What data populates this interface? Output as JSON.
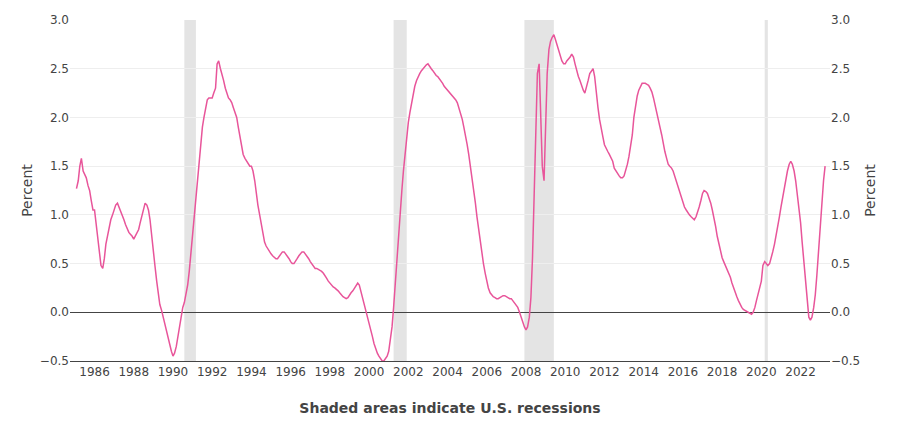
{
  "chart_data": {
    "type": "line",
    "xlabel": "Shaded areas indicate U.S. recessions",
    "ylabel": "Percent",
    "y2label": "Percent",
    "color": "#e8559a",
    "grid": "y",
    "xlim": [
      1984.75,
      2023.5
    ],
    "xticks": [
      1986,
      1988,
      1990,
      1992,
      1994,
      1996,
      1998,
      2000,
      2002,
      2004,
      2006,
      2008,
      2010,
      2012,
      2014,
      2016,
      2018,
      2020,
      2022
    ],
    "ylim": [
      -0.5,
      3.0
    ],
    "yticks": [
      {
        "value": -0.5,
        "label": "−0.5"
      },
      {
        "value": 0.0,
        "label": "0.0"
      },
      0.5,
      {
        "value": 1.0,
        "label": "1.0"
      },
      1.5,
      {
        "value": 2.0,
        "label": "2.0"
      },
      2.5,
      {
        "value": 3.0,
        "label": "3.0"
      }
    ],
    "y2lim": [
      -0.5,
      3.0
    ],
    "y2ticks": [
      {
        "value": -0.5,
        "label": "−0.5"
      },
      {
        "value": 0.0,
        "label": "0.0"
      },
      0.5,
      {
        "value": 1.0,
        "label": "1.0"
      },
      1.5,
      {
        "value": 2.0,
        "label": "2.0"
      },
      2.5,
      {
        "value": 3.0,
        "label": "3.0"
      }
    ],
    "recessions": [
      [
        1990.58,
        1991.17
      ],
      [
        2001.25,
        2001.92
      ],
      [
        2007.92,
        2009.42
      ],
      [
        2020.17,
        2020.33
      ]
    ],
    "x": [
      1985.08,
      1985.17,
      1985.25,
      1985.33,
      1985.42,
      1985.5,
      1985.58,
      1985.67,
      1985.75,
      1985.83,
      1985.92,
      1986.0,
      1986.08,
      1986.17,
      1986.25,
      1986.33,
      1986.42,
      1986.5,
      1986.58,
      1986.67,
      1986.75,
      1986.83,
      1986.92,
      1987.0,
      1987.08,
      1987.17,
      1987.25,
      1987.33,
      1987.42,
      1987.5,
      1987.58,
      1987.67,
      1987.75,
      1987.83,
      1987.92,
      1988.0,
      1988.08,
      1988.17,
      1988.25,
      1988.33,
      1988.42,
      1988.5,
      1988.58,
      1988.67,
      1988.75,
      1988.83,
      1988.92,
      1989.0,
      1989.08,
      1989.17,
      1989.25,
      1989.33,
      1989.42,
      1989.5,
      1989.58,
      1989.67,
      1989.75,
      1989.83,
      1989.92,
      1990.0,
      1990.08,
      1990.17,
      1990.25,
      1990.33,
      1990.42,
      1990.5,
      1990.58,
      1990.67,
      1990.75,
      1990.83,
      1990.92,
      1991.0,
      1991.08,
      1991.17,
      1991.25,
      1991.33,
      1991.42,
      1991.5,
      1991.58,
      1991.67,
      1991.75,
      1991.83,
      1991.92,
      1992.0,
      1992.08,
      1992.17,
      1992.25,
      1992.33,
      1992.42,
      1992.5,
      1992.58,
      1992.67,
      1992.75,
      1992.83,
      1992.92,
      1993.0,
      1993.08,
      1993.17,
      1993.25,
      1993.33,
      1993.42,
      1993.5,
      1993.58,
      1993.67,
      1993.75,
      1993.83,
      1993.92,
      1994.0,
      1994.08,
      1994.17,
      1994.25,
      1994.33,
      1994.42,
      1994.5,
      1994.58,
      1994.67,
      1994.75,
      1994.83,
      1994.92,
      1995.0,
      1995.08,
      1995.17,
      1995.25,
      1995.33,
      1995.42,
      1995.5,
      1995.58,
      1995.67,
      1995.75,
      1995.83,
      1995.92,
      1996.0,
      1996.08,
      1996.17,
      1996.25,
      1996.33,
      1996.42,
      1996.5,
      1996.58,
      1996.67,
      1996.75,
      1996.83,
      1996.92,
      1997.0,
      1997.08,
      1997.17,
      1997.25,
      1997.33,
      1997.42,
      1997.5,
      1997.58,
      1997.67,
      1997.75,
      1997.83,
      1997.92,
      1998.0,
      1998.08,
      1998.17,
      1998.25,
      1998.33,
      1998.42,
      1998.5,
      1998.58,
      1998.67,
      1998.75,
      1998.83,
      1998.92,
      1999.0,
      1999.08,
      1999.17,
      1999.25,
      1999.33,
      1999.42,
      1999.5,
      1999.58,
      1999.67,
      1999.75,
      1999.83,
      1999.92,
      2000.0,
      2000.08,
      2000.17,
      2000.25,
      2000.33,
      2000.42,
      2000.5,
      2000.58,
      2000.67,
      2000.75,
      2000.83,
      2000.92,
      2001.0,
      2001.08,
      2001.17,
      2001.25,
      2001.33,
      2001.42,
      2001.5,
      2001.58,
      2001.67,
      2001.75,
      2001.83,
      2001.92,
      2002.0,
      2002.08,
      2002.17,
      2002.25,
      2002.33,
      2002.42,
      2002.5,
      2002.58,
      2002.67,
      2002.75,
      2002.83,
      2002.92,
      2003.0,
      2003.08,
      2003.17,
      2003.25,
      2003.33,
      2003.42,
      2003.5,
      2003.58,
      2003.67,
      2003.75,
      2003.83,
      2003.92,
      2004.0,
      2004.08,
      2004.17,
      2004.25,
      2004.33,
      2004.42,
      2004.5,
      2004.58,
      2004.67,
      2004.75,
      2004.83,
      2004.92,
      2005.0,
      2005.08,
      2005.17,
      2005.25,
      2005.33,
      2005.42,
      2005.5,
      2005.58,
      2005.67,
      2005.75,
      2005.83,
      2005.92,
      2006.0,
      2006.08,
      2006.17,
      2006.25,
      2006.33,
      2006.42,
      2006.5,
      2006.58,
      2006.67,
      2006.75,
      2006.83,
      2006.92,
      2007.0,
      2007.08,
      2007.17,
      2007.25,
      2007.33,
      2007.42,
      2007.5,
      2007.58,
      2007.67,
      2007.75,
      2007.83,
      2007.92,
      2008.0,
      2008.08,
      2008.17,
      2008.25,
      2008.33,
      2008.42,
      2008.5,
      2008.58,
      2008.67,
      2008.75,
      2008.83,
      2008.92,
      2009.0,
      2009.08,
      2009.17,
      2009.25,
      2009.33,
      2009.42,
      2009.5,
      2009.58,
      2009.67,
      2009.75,
      2009.83,
      2009.92,
      2010.0,
      2010.08,
      2010.17,
      2010.25,
      2010.33,
      2010.42,
      2010.5,
      2010.58,
      2010.67,
      2010.75,
      2010.83,
      2010.92,
      2011.0,
      2011.08,
      2011.17,
      2011.25,
      2011.33,
      2011.42,
      2011.5,
      2011.58,
      2011.67,
      2011.75,
      2011.83,
      2011.92,
      2012.0,
      2012.08,
      2012.17,
      2012.25,
      2012.33,
      2012.42,
      2012.5,
      2012.58,
      2012.67,
      2012.75,
      2012.83,
      2012.92,
      2013.0,
      2013.08,
      2013.17,
      2013.25,
      2013.33,
      2013.42,
      2013.5,
      2013.58,
      2013.67,
      2013.75,
      2013.83,
      2013.92,
      2014.0,
      2014.08,
      2014.17,
      2014.25,
      2014.33,
      2014.42,
      2014.5,
      2014.58,
      2014.67,
      2014.75,
      2014.83,
      2014.92,
      2015.0,
      2015.08,
      2015.17,
      2015.25,
      2015.33,
      2015.42,
      2015.5,
      2015.58,
      2015.67,
      2015.75,
      2015.83,
      2015.92,
      2016.0,
      2016.08,
      2016.17,
      2016.25,
      2016.33,
      2016.42,
      2016.5,
      2016.58,
      2016.67,
      2016.75,
      2016.83,
      2016.92,
      2017.0,
      2017.08,
      2017.17,
      2017.25,
      2017.33,
      2017.42,
      2017.5,
      2017.58,
      2017.67,
      2017.75,
      2017.83,
      2017.92,
      2018.0,
      2018.08,
      2018.17,
      2018.25,
      2018.33,
      2018.42,
      2018.5,
      2018.58,
      2018.67,
      2018.75,
      2018.83,
      2018.92,
      2019.0,
      2019.08,
      2019.17,
      2019.25,
      2019.33,
      2019.42,
      2019.5,
      2019.58,
      2019.67,
      2019.75,
      2019.83,
      2019.92,
      2020.0,
      2020.08,
      2020.17,
      2020.25,
      2020.33,
      2020.42,
      2020.5,
      2020.58,
      2020.67,
      2020.75,
      2020.83,
      2020.92,
      2021.0,
      2021.08,
      2021.17,
      2021.25,
      2021.33,
      2021.42,
      2021.5,
      2021.58,
      2021.67,
      2021.75,
      2021.83,
      2021.92,
      2022.0,
      2022.08,
      2022.17,
      2022.25,
      2022.33,
      2022.42,
      2022.5,
      2022.58,
      2022.67,
      2022.75,
      2022.83,
      2022.92,
      2023.0,
      2023.08,
      2023.17,
      2023.25
    ],
    "values": [
      1.27,
      1.35,
      1.5,
      1.58,
      1.45,
      1.42,
      1.38,
      1.3,
      1.25,
      1.15,
      1.05,
      1.05,
      0.9,
      0.75,
      0.6,
      0.48,
      0.45,
      0.55,
      0.7,
      0.8,
      0.88,
      0.95,
      1.0,
      1.05,
      1.1,
      1.12,
      1.08,
      1.05,
      1.0,
      0.95,
      0.9,
      0.85,
      0.82,
      0.8,
      0.78,
      0.75,
      0.78,
      0.82,
      0.85,
      0.92,
      1.0,
      1.08,
      1.12,
      1.1,
      1.05,
      0.95,
      0.8,
      0.65,
      0.48,
      0.32,
      0.18,
      0.08,
      0.02,
      -0.05,
      -0.12,
      -0.18,
      -0.25,
      -0.32,
      -0.4,
      -0.45,
      -0.42,
      -0.35,
      -0.25,
      -0.15,
      -0.05,
      0.05,
      0.1,
      0.18,
      0.28,
      0.42,
      0.62,
      0.8,
      1.0,
      1.15,
      1.38,
      1.55,
      1.75,
      1.9,
      2.0,
      2.1,
      2.18,
      2.2,
      2.2,
      2.2,
      2.25,
      2.3,
      2.55,
      2.58,
      2.5,
      2.45,
      2.38,
      2.3,
      2.25,
      2.2,
      2.18,
      2.15,
      2.1,
      2.05,
      2.0,
      1.9,
      1.8,
      1.7,
      1.62,
      1.58,
      1.55,
      1.52,
      1.5,
      1.5,
      1.45,
      1.35,
      1.2,
      1.1,
      1.0,
      0.9,
      0.8,
      0.72,
      0.68,
      0.65,
      0.62,
      0.6,
      0.58,
      0.56,
      0.55,
      0.55,
      0.58,
      0.6,
      0.62,
      0.62,
      0.6,
      0.58,
      0.55,
      0.52,
      0.5,
      0.5,
      0.52,
      0.55,
      0.58,
      0.6,
      0.62,
      0.62,
      0.6,
      0.58,
      0.55,
      0.52,
      0.5,
      0.48,
      0.45,
      0.45,
      0.44,
      0.43,
      0.42,
      0.4,
      0.38,
      0.35,
      0.32,
      0.3,
      0.28,
      0.26,
      0.25,
      0.24,
      0.22,
      0.2,
      0.18,
      0.16,
      0.15,
      0.14,
      0.15,
      0.18,
      0.2,
      0.22,
      0.25,
      0.28,
      0.3,
      0.28,
      0.22,
      0.15,
      0.08,
      0.02,
      -0.05,
      -0.12,
      -0.18,
      -0.25,
      -0.32,
      -0.38,
      -0.42,
      -0.45,
      -0.48,
      -0.5,
      -0.5,
      -0.48,
      -0.45,
      -0.4,
      -0.3,
      -0.15,
      0.05,
      0.3,
      0.55,
      0.8,
      1.05,
      1.25,
      1.45,
      1.62,
      1.8,
      1.95,
      2.05,
      2.15,
      2.25,
      2.32,
      2.38,
      2.42,
      2.45,
      2.48,
      2.5,
      2.52,
      2.54,
      2.55,
      2.52,
      2.5,
      2.48,
      2.45,
      2.43,
      2.42,
      2.4,
      2.38,
      2.35,
      2.32,
      2.3,
      2.28,
      2.26,
      2.24,
      2.22,
      2.2,
      2.18,
      2.15,
      2.1,
      2.05,
      1.98,
      1.9,
      1.82,
      1.72,
      1.62,
      1.5,
      1.38,
      1.25,
      1.12,
      0.98,
      0.85,
      0.72,
      0.6,
      0.5,
      0.4,
      0.32,
      0.25,
      0.2,
      0.18,
      0.16,
      0.15,
      0.14,
      0.14,
      0.15,
      0.16,
      0.17,
      0.17,
      0.16,
      0.15,
      0.14,
      0.14,
      0.12,
      0.1,
      0.08,
      0.05,
      0.0,
      -0.05,
      -0.1,
      -0.15,
      -0.18,
      -0.15,
      -0.05,
      0.15,
      0.55,
      1.2,
      1.9,
      2.45,
      2.55,
      1.95,
      1.5,
      1.35,
      1.92,
      2.45,
      2.7,
      2.78,
      2.82,
      2.85,
      2.8,
      2.75,
      2.68,
      2.62,
      2.58,
      2.55,
      2.55,
      2.58,
      2.6,
      2.62,
      2.65,
      2.62,
      2.55,
      2.48,
      2.42,
      2.38,
      2.32,
      2.28,
      2.25,
      2.3,
      2.38,
      2.45,
      2.48,
      2.5,
      2.42,
      2.25,
      2.1,
      1.98,
      1.88,
      1.8,
      1.72,
      1.68,
      1.65,
      1.62,
      1.58,
      1.55,
      1.48,
      1.45,
      1.42,
      1.4,
      1.38,
      1.38,
      1.4,
      1.45,
      1.52,
      1.6,
      1.7,
      1.82,
      2.0,
      2.12,
      2.22,
      2.28,
      2.32,
      2.35,
      2.35,
      2.35,
      2.34,
      2.33,
      2.3,
      2.26,
      2.2,
      2.12,
      2.05,
      1.98,
      1.9,
      1.82,
      1.72,
      1.65,
      1.58,
      1.52,
      1.5,
      1.48,
      1.45,
      1.4,
      1.35,
      1.3,
      1.24,
      1.18,
      1.12,
      1.08,
      1.05,
      1.02,
      1.0,
      0.98,
      0.96,
      0.95,
      0.98,
      1.02,
      1.08,
      1.15,
      1.22,
      1.25,
      1.24,
      1.22,
      1.18,
      1.12,
      1.05,
      0.98,
      0.88,
      0.78,
      0.7,
      0.62,
      0.56,
      0.52,
      0.48,
      0.44,
      0.4,
      0.36,
      0.3,
      0.25,
      0.2,
      0.16,
      0.12,
      0.08,
      0.05,
      0.03,
      0.02,
      0.01,
      0.0,
      -0.01,
      -0.02,
      0.0,
      0.05,
      0.12,
      0.18,
      0.25,
      0.32,
      0.48,
      0.52,
      0.5,
      0.48,
      0.5,
      0.55,
      0.62,
      0.7,
      0.78,
      0.88,
      0.98,
      1.08,
      1.18,
      1.28,
      1.38,
      1.45,
      1.52,
      1.55,
      1.52,
      1.45,
      1.35,
      1.22,
      1.08,
      0.92,
      0.72,
      0.5,
      0.28,
      0.08,
      -0.05,
      -0.08,
      -0.05,
      0.05,
      0.18,
      0.38,
      0.62,
      0.92,
      1.15,
      1.35,
      1.5
    ]
  }
}
